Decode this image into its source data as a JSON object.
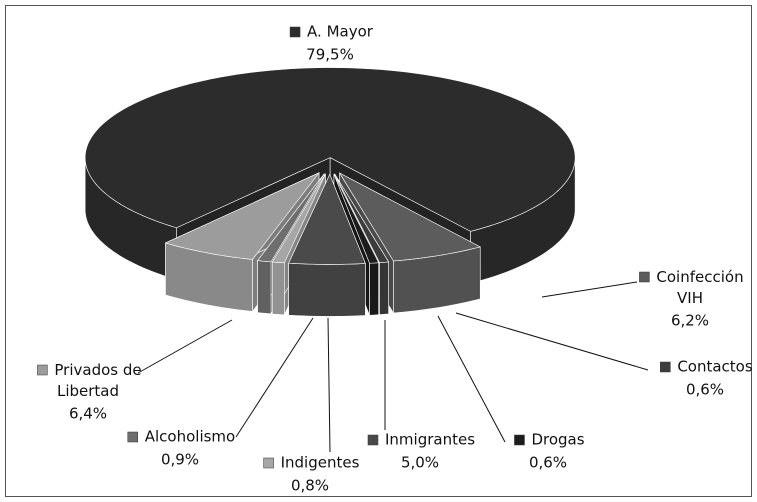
{
  "chart_data": {
    "type": "pie3d",
    "categories": [
      "A. Mayor",
      "Coinfección VIH",
      "Contactos",
      "Drogas",
      "Inmigrantes",
      "Indigentes",
      "Alcoholismo",
      "Privados de Libertad"
    ],
    "values": [
      79.5,
      6.2,
      0.6,
      0.6,
      5.0,
      0.8,
      0.9,
      6.4
    ],
    "value_labels": [
      "79,5%",
      "6,2%",
      "0,6%",
      "0,6%",
      "5,0%",
      "0,8%",
      "0,9%",
      "6,4%"
    ],
    "colors": [
      "#2c2c2c",
      "#5c5c5c",
      "#3c3c3c",
      "#1c1c1c",
      "#4a4a4a",
      "#a6a6a6",
      "#6e6e6e",
      "#9c9c9c"
    ]
  }
}
